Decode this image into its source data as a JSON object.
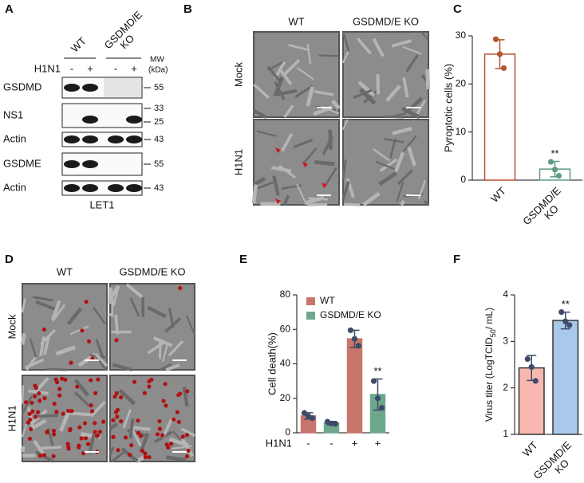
{
  "figure": {
    "A": {
      "letter": "A",
      "groups": [
        "WT",
        [
          "GSDMD/E",
          "KO"
        ]
      ],
      "treatment": "H1N1",
      "signs": [
        "-",
        "+",
        "-",
        "+"
      ],
      "mw_header": [
        "MW",
        "(kDa)"
      ],
      "rows": [
        {
          "label": "GSDMD",
          "mw": [
            55
          ]
        },
        {
          "label": "NS1",
          "mw": [
            33,
            25
          ]
        },
        {
          "label": "Actin",
          "mw": [
            43
          ]
        },
        {
          "label": "GSDME",
          "mw": [
            55
          ]
        },
        {
          "label": "Actin",
          "mw": [
            43
          ]
        }
      ],
      "cell_line": "LET1"
    },
    "B": {
      "letter": "B",
      "columns": [
        "WT",
        "GSDMD/E KO"
      ],
      "rows": [
        "Mock",
        "H1N1"
      ]
    },
    "D": {
      "letter": "D",
      "columns": [
        "WT",
        "GSDMD/E KO"
      ],
      "rows": [
        "Mock",
        "H1N1"
      ]
    }
  },
  "chart_data": [
    {
      "type": "bar",
      "panel_label": "C",
      "ylabel": "Pyroptotic cells (%)",
      "categories": [
        "WT",
        [
          "GSDMD/E",
          "KO"
        ]
      ],
      "values": [
        26.2,
        2.3
      ],
      "errors": [
        3,
        1.6
      ],
      "points": [
        [
          29.3,
          26.2,
          23.3
        ],
        [
          3.8,
          2.2,
          0.9
        ]
      ],
      "fills": [
        "#ffffff",
        "#ffffff"
      ],
      "edges": [
        "#b4532f",
        "#5e9d81"
      ],
      "ylim": [
        0,
        30
      ],
      "yticks": [
        0,
        10,
        20,
        30
      ],
      "significance": [
        null,
        "**"
      ]
    },
    {
      "type": "bar",
      "panel_label": "E",
      "ylabel": "Cell death(%)",
      "categories": [
        "-",
        "-",
        "+",
        "+"
      ],
      "row_label": "H1N1",
      "series": [
        {
          "name": "WT",
          "color": "#c8766b",
          "values": [
            9.8,
            null,
            54.5,
            null
          ],
          "errors": [
            1.8,
            null,
            5,
            null
          ],
          "points": [
            [
              11.5,
              9.6,
              8.5
            ],
            null,
            [
              59.5,
              54.5,
              50.5
            ],
            null
          ]
        },
        {
          "name": "GSDMD/E KO",
          "color": "#6ea88c",
          "values": [
            null,
            5.6,
            null,
            22.2
          ],
          "errors": [
            null,
            1,
            null,
            9
          ],
          "points": [
            null,
            [
              6.4,
              5.4,
              5.2
            ],
            null,
            [
              30,
              20,
              14.5
            ]
          ]
        }
      ],
      "point_color": "#3d4a68",
      "legend": "top-left",
      "ylim": [
        0,
        80
      ],
      "yticks": [
        0,
        20,
        40,
        60,
        80
      ],
      "significance": [
        null,
        null,
        null,
        "**"
      ]
    },
    {
      "type": "bar",
      "panel_label": "F",
      "ylabel": [
        "Virus titer (LogTCID",
        "50",
        "/ mL)"
      ],
      "categories": [
        "WT",
        [
          "GSDMD/E",
          "KO"
        ]
      ],
      "values": [
        2.43,
        3.45
      ],
      "errors": [
        0.27,
        0.18
      ],
      "points": [
        [
          2.62,
          2.45,
          2.15
        ],
        [
          3.63,
          3.43,
          3.35
        ]
      ],
      "fills": [
        "#f8b8b0",
        "#a9c9ea"
      ],
      "edges": [
        "#333333",
        "#333333"
      ],
      "point_color": "#3d4a68",
      "ylim": [
        1,
        4
      ],
      "yticks": [
        1,
        2,
        3,
        4
      ],
      "significance": [
        null,
        "**"
      ]
    }
  ]
}
